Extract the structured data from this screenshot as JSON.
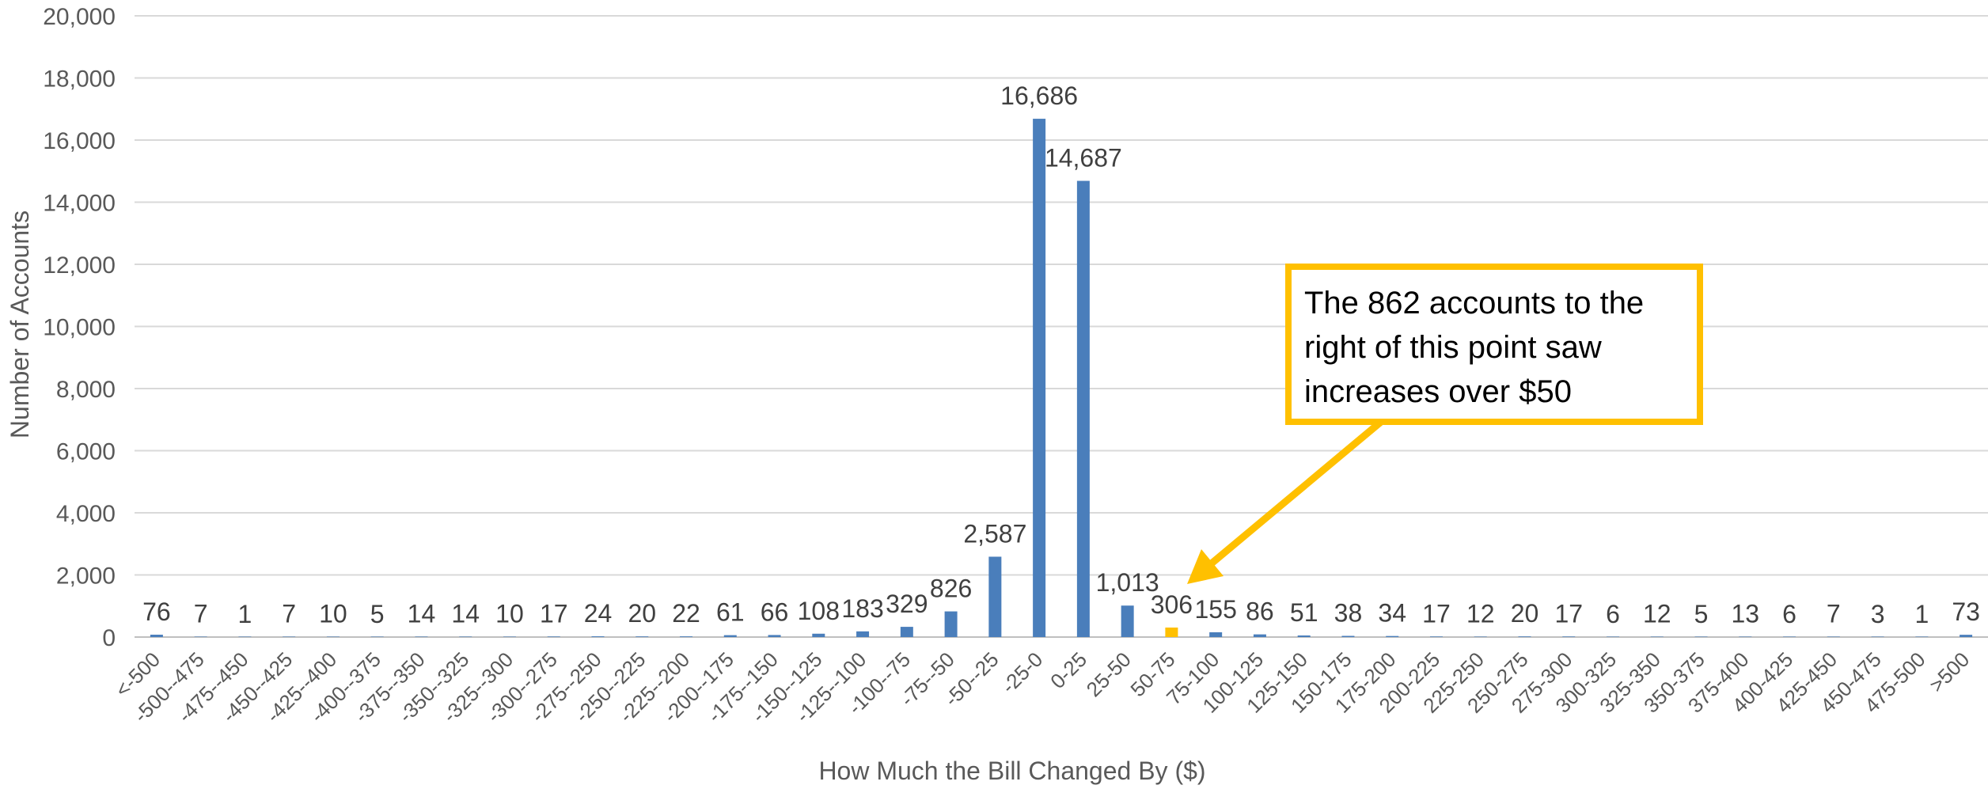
{
  "chart_data": {
    "type": "bar",
    "title": "",
    "xlabel": "How Much the Bill Changed By ($)",
    "ylabel": "Number of Accounts",
    "ylim": [
      0,
      20000
    ],
    "ytick_step": 2000,
    "ytick_labels": [
      "0",
      "2,000",
      "4,000",
      "6,000",
      "8,000",
      "10,000",
      "12,000",
      "14,000",
      "16,000",
      "18,000",
      "20,000"
    ],
    "grid": true,
    "legend": "none",
    "categories": [
      "<-500",
      "-500--475",
      "-475--450",
      "-450--425",
      "-425--400",
      "-400--375",
      "-375--350",
      "-350--325",
      "-325--300",
      "-300--275",
      "-275--250",
      "-250--225",
      "-225--200",
      "-200--175",
      "-175--150",
      "-150--125",
      "-125--100",
      "-100--75",
      "-75--50",
      "-50--25",
      "-25-0",
      "0-25",
      "25-50",
      "50-75",
      "75-100",
      "100-125",
      "125-150",
      "150-175",
      "175-200",
      "200-225",
      "225-250",
      "250-275",
      "275-300",
      "300-325",
      "325-350",
      "350-375",
      "375-400",
      "400-425",
      "425-450",
      "450-475",
      "475-500",
      ">500"
    ],
    "values": [
      76,
      7,
      1,
      7,
      10,
      5,
      14,
      14,
      10,
      17,
      24,
      20,
      22,
      61,
      66,
      108,
      183,
      329,
      826,
      2587,
      16686,
      14687,
      1013,
      306,
      155,
      86,
      51,
      38,
      34,
      17,
      12,
      20,
      17,
      6,
      12,
      5,
      13,
      6,
      7,
      3,
      1,
      73
    ],
    "value_labels": [
      "76",
      "7",
      "1",
      "7",
      "10",
      "5",
      "14",
      "14",
      "10",
      "17",
      "24",
      "20",
      "22",
      "61",
      "66",
      "108",
      "183",
      "329",
      "826",
      "2,587",
      "16,686",
      "14,687",
      "1,013",
      "306",
      "155",
      "86",
      "51",
      "38",
      "34",
      "17",
      "12",
      "20",
      "17",
      "6",
      "12",
      "5",
      "13",
      "6",
      "7",
      "3",
      "1",
      "73"
    ],
    "bar_color": "#4A7EBB",
    "highlight_index": 23,
    "highlight_color": "#FFC000",
    "annotation": {
      "lines": [
        "The 862 accounts to the",
        "right of this point saw",
        "increases over $50"
      ],
      "border_color": "#FFC000",
      "arrow_color": "#FFC000",
      "points_to": "50-75"
    },
    "gridline_color": "#D9D9D9",
    "axis_color": "#BFBFBF"
  }
}
